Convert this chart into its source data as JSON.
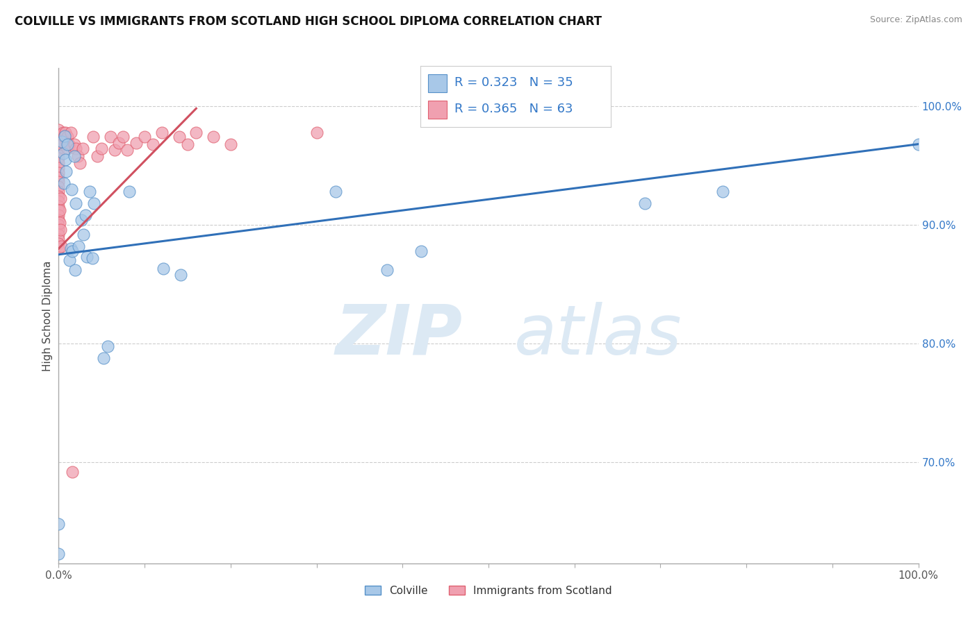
{
  "title": "COLVILLE VS IMMIGRANTS FROM SCOTLAND HIGH SCHOOL DIPLOMA CORRELATION CHART",
  "source": "Source: ZipAtlas.com",
  "ylabel": "High School Diploma",
  "xlim": [
    0.0,
    1.0
  ],
  "ylim": [
    0.615,
    1.032
  ],
  "xticks": [
    0.0,
    0.1,
    0.2,
    0.3,
    0.4,
    0.5,
    0.6,
    0.7,
    0.8,
    0.9,
    1.0
  ],
  "xtick_labels_show": {
    "0.0": "0.0%",
    "0.5": "",
    "1.0": "100.0%"
  },
  "ytick_positions_right": [
    1.0,
    0.9,
    0.8,
    0.7
  ],
  "ytick_labels_right": [
    "100.0%",
    "90.0%",
    "80.0%",
    "70.0%"
  ],
  "legend_R_blue": "R = 0.323",
  "legend_N_blue": "N = 35",
  "legend_R_pink": "R = 0.365",
  "legend_N_pink": "N = 63",
  "blue_scatter_color": "#a8c8e8",
  "blue_edge_color": "#5590c8",
  "pink_scatter_color": "#f0a0b0",
  "pink_edge_color": "#e06070",
  "blue_line_color": "#3070b8",
  "pink_line_color": "#d05060",
  "legend_text_color": "#3378c8",
  "grid_color": "#cccccc",
  "colville_points": [
    [
      0.0,
      0.623
    ],
    [
      0.0,
      0.648
    ],
    [
      0.004,
      0.97
    ],
    [
      0.005,
      0.96
    ],
    [
      0.006,
      0.935
    ],
    [
      0.007,
      0.975
    ],
    [
      0.008,
      0.955
    ],
    [
      0.009,
      0.945
    ],
    [
      0.01,
      0.968
    ],
    [
      0.013,
      0.87
    ],
    [
      0.014,
      0.88
    ],
    [
      0.015,
      0.93
    ],
    [
      0.016,
      0.878
    ],
    [
      0.018,
      0.958
    ],
    [
      0.019,
      0.862
    ],
    [
      0.02,
      0.918
    ],
    [
      0.023,
      0.882
    ],
    [
      0.026,
      0.904
    ],
    [
      0.029,
      0.892
    ],
    [
      0.031,
      0.908
    ],
    [
      0.033,
      0.873
    ],
    [
      0.036,
      0.928
    ],
    [
      0.039,
      0.872
    ],
    [
      0.041,
      0.918
    ],
    [
      0.052,
      0.788
    ],
    [
      0.057,
      0.798
    ],
    [
      0.082,
      0.928
    ],
    [
      0.122,
      0.863
    ],
    [
      0.142,
      0.858
    ],
    [
      0.322,
      0.928
    ],
    [
      0.382,
      0.862
    ],
    [
      0.422,
      0.878
    ],
    [
      0.682,
      0.918
    ],
    [
      0.772,
      0.928
    ],
    [
      1.0,
      0.968
    ]
  ],
  "scotland_points": [
    [
      0.0,
      0.98
    ],
    [
      0.0,
      0.976
    ],
    [
      0.0,
      0.972
    ],
    [
      0.0,
      0.968
    ],
    [
      0.0,
      0.964
    ],
    [
      0.0,
      0.96
    ],
    [
      0.0,
      0.956
    ],
    [
      0.0,
      0.952
    ],
    [
      0.0,
      0.948
    ],
    [
      0.0,
      0.944
    ],
    [
      0.0,
      0.94
    ],
    [
      0.0,
      0.936
    ],
    [
      0.0,
      0.932
    ],
    [
      0.0,
      0.928
    ],
    [
      0.0,
      0.924
    ],
    [
      0.0,
      0.92
    ],
    [
      0.0,
      0.916
    ],
    [
      0.0,
      0.912
    ],
    [
      0.0,
      0.908
    ],
    [
      0.0,
      0.904
    ],
    [
      0.0,
      0.9
    ],
    [
      0.0,
      0.896
    ],
    [
      0.0,
      0.892
    ],
    [
      0.0,
      0.888
    ],
    [
      0.0,
      0.884
    ],
    [
      0.0,
      0.88
    ],
    [
      0.001,
      0.912
    ],
    [
      0.001,
      0.902
    ],
    [
      0.002,
      0.922
    ],
    [
      0.002,
      0.896
    ],
    [
      0.003,
      0.882
    ],
    [
      0.004,
      0.968
    ],
    [
      0.005,
      0.978
    ],
    [
      0.006,
      0.974
    ],
    [
      0.008,
      0.978
    ],
    [
      0.01,
      0.974
    ],
    [
      0.01,
      0.964
    ],
    [
      0.012,
      0.968
    ],
    [
      0.014,
      0.978
    ],
    [
      0.016,
      0.692
    ],
    [
      0.018,
      0.968
    ],
    [
      0.02,
      0.964
    ],
    [
      0.022,
      0.958
    ],
    [
      0.025,
      0.952
    ],
    [
      0.028,
      0.964
    ],
    [
      0.04,
      0.974
    ],
    [
      0.045,
      0.958
    ],
    [
      0.05,
      0.964
    ],
    [
      0.06,
      0.974
    ],
    [
      0.065,
      0.963
    ],
    [
      0.07,
      0.969
    ],
    [
      0.075,
      0.974
    ],
    [
      0.08,
      0.963
    ],
    [
      0.09,
      0.969
    ],
    [
      0.1,
      0.974
    ],
    [
      0.11,
      0.968
    ],
    [
      0.12,
      0.978
    ],
    [
      0.14,
      0.974
    ],
    [
      0.15,
      0.968
    ],
    [
      0.16,
      0.978
    ],
    [
      0.18,
      0.974
    ],
    [
      0.2,
      0.968
    ],
    [
      0.3,
      0.978
    ]
  ],
  "blue_trendline": [
    0.0,
    0.875,
    1.0,
    0.968
  ],
  "pink_trendline": [
    0.0,
    0.88,
    0.16,
    0.998
  ]
}
